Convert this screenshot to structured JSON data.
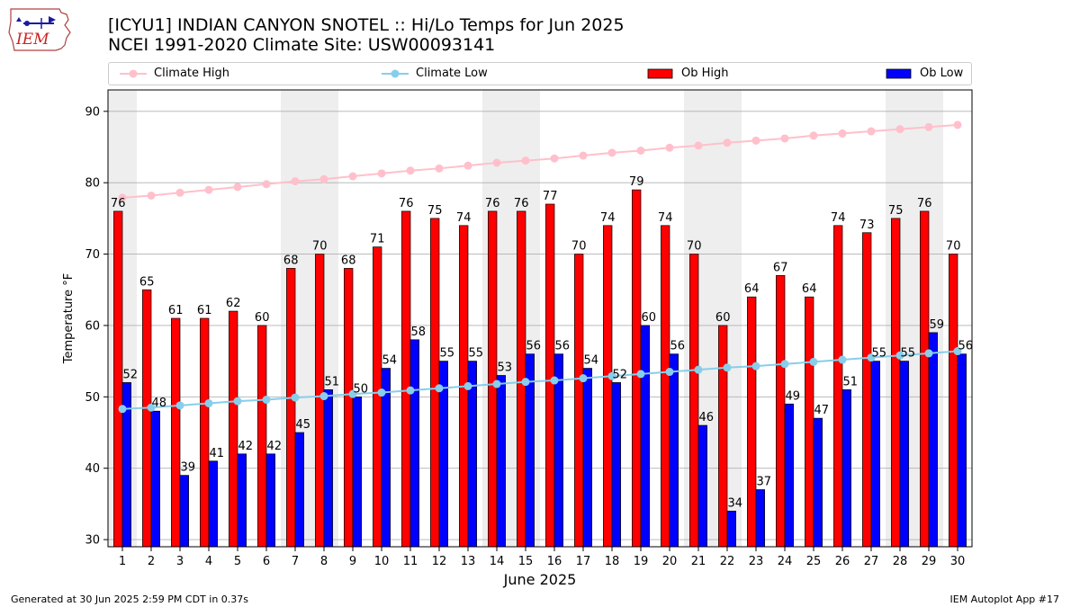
{
  "logo": {
    "text": "IEM"
  },
  "header": {
    "title": "[ICYU1] INDIAN CANYON SNOTEL :: Hi/Lo Temps for Jun 2025",
    "subtitle": "NCEI 1991-2020 Climate Site: USW00093141"
  },
  "footer": {
    "generated": "Generated at 30 Jun 2025 2:59 PM CDT in 0.37s",
    "app": "IEM Autoplot App #17"
  },
  "colors": {
    "ob_high": "#ff0000",
    "ob_low": "#0000ff",
    "climate_high": "#ffc0cb",
    "climate_low": "#87ceeb",
    "weekend_shade": "#eeeeee",
    "grid": "#b0b0b0"
  },
  "chart_data": {
    "type": "bar",
    "xlabel": "June 2025",
    "ylabel": "Temperature °F",
    "ylim": [
      29,
      93
    ],
    "yticks": [
      30,
      40,
      50,
      60,
      70,
      80,
      90
    ],
    "grid": "horizontal",
    "legend_placement": "top",
    "categories": [
      "1",
      "2",
      "3",
      "4",
      "5",
      "6",
      "7",
      "8",
      "9",
      "10",
      "11",
      "12",
      "13",
      "14",
      "15",
      "16",
      "17",
      "18",
      "19",
      "20",
      "21",
      "22",
      "23",
      "24",
      "25",
      "26",
      "27",
      "28",
      "29",
      "30"
    ],
    "shaded_days": [
      "1",
      "7",
      "8",
      "14",
      "15",
      "21",
      "22",
      "28",
      "29"
    ],
    "series": [
      {
        "name": "Ob High",
        "kind": "bar",
        "color_key": "ob_high",
        "values": [
          76,
          65,
          61,
          61,
          62,
          60,
          68,
          70,
          68,
          71,
          76,
          75,
          74,
          76,
          76,
          77,
          70,
          74,
          79,
          74,
          70,
          60,
          64,
          67,
          64,
          74,
          73,
          75,
          76,
          70
        ]
      },
      {
        "name": "Ob Low",
        "kind": "bar",
        "color_key": "ob_low",
        "values": [
          52,
          48,
          39,
          41,
          42,
          42,
          45,
          51,
          50,
          54,
          58,
          55,
          55,
          53,
          56,
          56,
          54,
          52,
          60,
          56,
          46,
          34,
          37,
          49,
          47,
          51,
          55,
          55,
          59,
          56
        ]
      },
      {
        "name": "Climate High",
        "kind": "line",
        "color_key": "climate_high",
        "values": [
          77.9,
          78.2,
          78.6,
          79.0,
          79.4,
          79.8,
          80.2,
          80.5,
          80.9,
          81.3,
          81.7,
          82.0,
          82.4,
          82.8,
          83.1,
          83.4,
          83.8,
          84.2,
          84.5,
          84.9,
          85.2,
          85.6,
          85.9,
          86.2,
          86.6,
          86.9,
          87.2,
          87.5,
          87.8,
          88.1
        ]
      },
      {
        "name": "Climate Low",
        "kind": "line",
        "color_key": "climate_low",
        "values": [
          48.3,
          48.5,
          48.8,
          49.1,
          49.4,
          49.6,
          49.9,
          50.1,
          50.4,
          50.6,
          50.9,
          51.2,
          51.5,
          51.8,
          52.1,
          52.3,
          52.6,
          52.9,
          53.2,
          53.5,
          53.8,
          54.1,
          54.3,
          54.6,
          54.9,
          55.2,
          55.5,
          55.8,
          56.1,
          56.4
        ]
      }
    ]
  }
}
